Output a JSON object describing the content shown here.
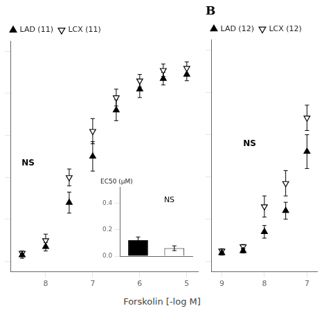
{
  "chart_data": [
    {
      "type": "scatter",
      "x_label": "Forskolin [-log M]",
      "x": [
        8.5,
        8.0,
        7.5,
        7.0,
        6.5,
        6.0,
        5.5,
        5.0
      ],
      "series": [
        {
          "name": "LAD (11)",
          "color": "black",
          "marker": "triangle-up",
          "values": [
            3,
            7,
            28,
            50,
            72,
            82,
            87,
            89
          ],
          "errors": [
            1.5,
            2,
            5,
            7,
            5,
            4,
            3,
            3
          ]
        },
        {
          "name": "LCX (11)",
          "color": "black",
          "marker": "triangle-down-open",
          "values": [
            4,
            10,
            40,
            62,
            78,
            86,
            91,
            92
          ],
          "errors": [
            1,
            3,
            4,
            6,
            4,
            3,
            3,
            3
          ]
        }
      ],
      "xlim": [
        8.75,
        4.75
      ],
      "xticks": [
        8,
        7,
        6,
        5
      ],
      "ylim": [
        -5,
        105
      ],
      "yticks": [
        0,
        20,
        40,
        60,
        80,
        100
      ],
      "tick_labels": "x",
      "grid": false,
      "legend": "upper left",
      "annotations": [
        "NS"
      ]
    },
    {
      "type": "scatter",
      "title": "B",
      "x": [
        9.0,
        8.5,
        8.0,
        7.5,
        7.0
      ],
      "series": [
        {
          "name": "LAD (12)",
          "color": "black",
          "marker": "triangle-up",
          "values": [
            4,
            5,
            14,
            24,
            52
          ],
          "errors": [
            1,
            1,
            3,
            4,
            8
          ]
        },
        {
          "name": "LCX (12)",
          "color": "black",
          "marker": "triangle-down-open",
          "values": [
            5,
            7,
            26,
            37,
            68
          ],
          "errors": [
            1,
            1,
            5,
            6,
            6
          ]
        }
      ],
      "xlim": [
        9.25,
        6.75
      ],
      "xticks": [
        9,
        8,
        7
      ],
      "ylim": [
        -5,
        105
      ],
      "yticks": [
        0,
        20,
        40,
        60,
        80,
        100
      ],
      "tick_labels": "x",
      "grid": false,
      "legend": "upper left",
      "annotations": [
        "NS"
      ]
    },
    {
      "type": "bar",
      "y_label": "EC50 (μM)",
      "categories": [
        null,
        null
      ],
      "values": [
        0.12,
        0.06
      ],
      "errors": [
        0.025,
        0.018
      ],
      "colors": [
        "black",
        "white"
      ],
      "ylim": [
        0,
        0.52
      ],
      "yticks": [
        {
          "value": 0.0,
          "label": "0.0"
        },
        {
          "value": 0.2,
          "label": "0.2"
        },
        {
          "value": 0.4,
          "label": "0.4"
        }
      ],
      "tick_labels": "y",
      "grid": false,
      "annotations": [
        "NS"
      ]
    }
  ]
}
